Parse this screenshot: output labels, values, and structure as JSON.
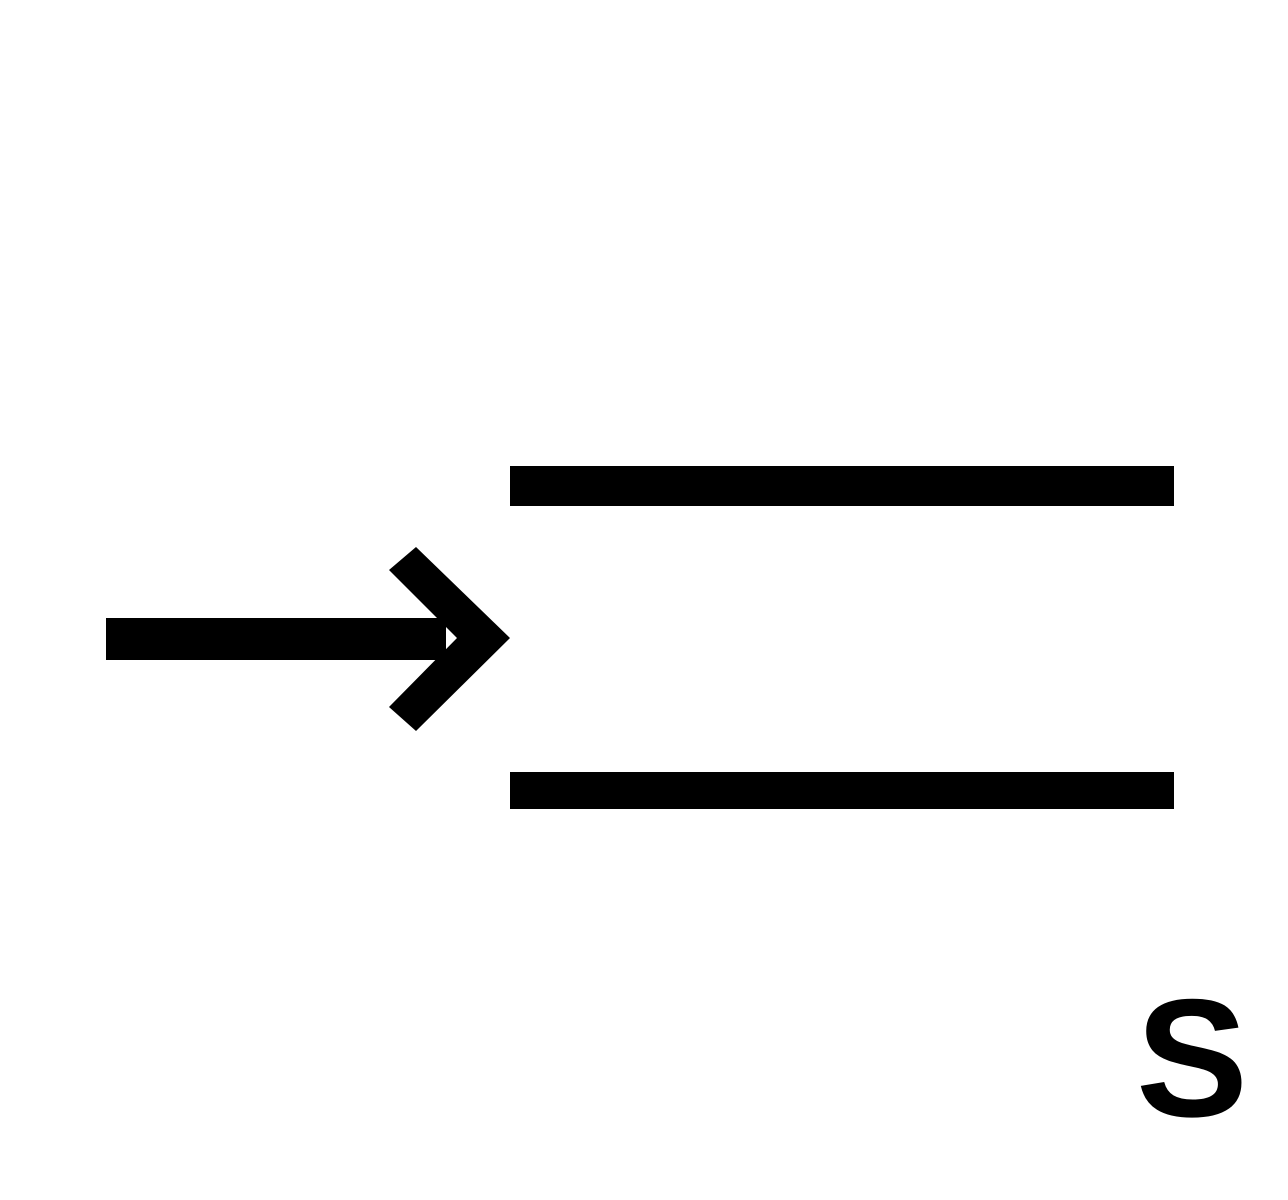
{
  "symbol": {
    "letter": "S",
    "stroke_color": "#000000",
    "background_color": "#ffffff",
    "icons": [
      "arrow-right-icon",
      "upper-bar",
      "lower-bar"
    ]
  }
}
